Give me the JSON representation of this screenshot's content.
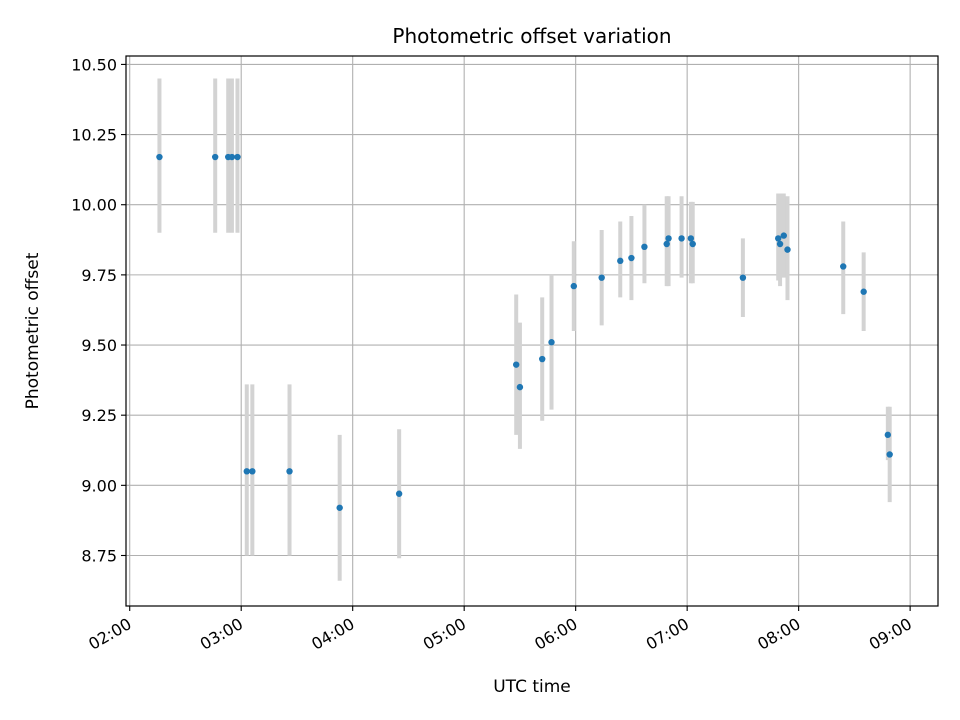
{
  "chart_data": {
    "type": "scatter",
    "title": "Photometric offset variation",
    "xlabel": "UTC time",
    "ylabel": "Photometric offset",
    "x_ticks": [
      "02:00",
      "03:00",
      "04:00",
      "05:00",
      "06:00",
      "07:00",
      "08:00",
      "09:00"
    ],
    "y_ticks": [
      "8.75",
      "9.00",
      "9.25",
      "9.50",
      "9.75",
      "10.00",
      "10.25",
      "10.50"
    ],
    "xlim": [
      "01:58",
      "09:15"
    ],
    "ylim": [
      8.57,
      10.53
    ],
    "grid": true,
    "colors": {
      "points": "#1f77b4",
      "errorbars": "#d3d3d3",
      "grid": "#b0b0b0"
    },
    "series": [
      {
        "points": [
          {
            "x": "02:16",
            "y": 10.17,
            "err_low": 9.9,
            "err_high": 10.45
          },
          {
            "x": "02:46",
            "y": 10.17,
            "err_low": 9.9,
            "err_high": 10.45
          },
          {
            "x": "02:53",
            "y": 10.17,
            "err_low": 9.9,
            "err_high": 10.45
          },
          {
            "x": "02:55",
            "y": 10.17,
            "err_low": 9.9,
            "err_high": 10.45
          },
          {
            "x": "02:58",
            "y": 10.17,
            "err_low": 9.9,
            "err_high": 10.45
          },
          {
            "x": "03:03",
            "y": 9.05,
            "err_low": 8.75,
            "err_high": 9.36
          },
          {
            "x": "03:06",
            "y": 9.05,
            "err_low": 8.75,
            "err_high": 9.36
          },
          {
            "x": "03:26",
            "y": 9.05,
            "err_low": 8.75,
            "err_high": 9.36
          },
          {
            "x": "03:53",
            "y": 8.92,
            "err_low": 8.66,
            "err_high": 9.18
          },
          {
            "x": "04:25",
            "y": 8.97,
            "err_low": 8.74,
            "err_high": 9.2
          },
          {
            "x": "05:28",
            "y": 9.43,
            "err_low": 9.18,
            "err_high": 9.68
          },
          {
            "x": "05:30",
            "y": 9.35,
            "err_low": 9.13,
            "err_high": 9.58
          },
          {
            "x": "05:42",
            "y": 9.45,
            "err_low": 9.23,
            "err_high": 9.67
          },
          {
            "x": "05:47",
            "y": 9.51,
            "err_low": 9.27,
            "err_high": 9.75
          },
          {
            "x": "05:59",
            "y": 9.71,
            "err_low": 9.55,
            "err_high": 9.87
          },
          {
            "x": "06:14",
            "y": 9.74,
            "err_low": 9.57,
            "err_high": 9.91
          },
          {
            "x": "06:24",
            "y": 9.8,
            "err_low": 9.67,
            "err_high": 9.94
          },
          {
            "x": "06:30",
            "y": 9.81,
            "err_low": 9.66,
            "err_high": 9.96
          },
          {
            "x": "06:37",
            "y": 9.85,
            "err_low": 9.72,
            "err_high": 10.0
          },
          {
            "x": "06:49",
            "y": 9.86,
            "err_low": 9.71,
            "err_high": 10.03
          },
          {
            "x": "06:50",
            "y": 9.88,
            "err_low": 9.71,
            "err_high": 10.03
          },
          {
            "x": "06:57",
            "y": 9.88,
            "err_low": 9.74,
            "err_high": 10.03
          },
          {
            "x": "07:02",
            "y": 9.88,
            "err_low": 9.72,
            "err_high": 10.01
          },
          {
            "x": "07:03",
            "y": 9.86,
            "err_low": 9.72,
            "err_high": 10.01
          },
          {
            "x": "07:30",
            "y": 9.74,
            "err_low": 9.6,
            "err_high": 9.88
          },
          {
            "x": "07:49",
            "y": 9.88,
            "err_low": 9.73,
            "err_high": 10.04
          },
          {
            "x": "07:50",
            "y": 9.86,
            "err_low": 9.71,
            "err_high": 10.04
          },
          {
            "x": "07:52",
            "y": 9.89,
            "err_low": 9.74,
            "err_high": 10.04
          },
          {
            "x": "07:54",
            "y": 9.84,
            "err_low": 9.66,
            "err_high": 10.03
          },
          {
            "x": "08:24",
            "y": 9.78,
            "err_low": 9.61,
            "err_high": 9.94
          },
          {
            "x": "08:35",
            "y": 9.69,
            "err_low": 9.55,
            "err_high": 9.83
          },
          {
            "x": "08:48",
            "y": 9.18,
            "err_low": 9.09,
            "err_high": 9.28
          },
          {
            "x": "08:49",
            "y": 9.11,
            "err_low": 8.94,
            "err_high": 9.28
          }
        ]
      }
    ]
  }
}
